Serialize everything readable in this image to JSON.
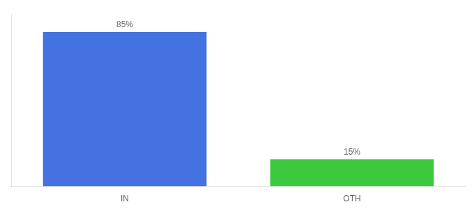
{
  "chart_data": {
    "type": "bar",
    "categories": [
      "IN",
      "OTH"
    ],
    "values": [
      85,
      15
    ],
    "value_labels": [
      "85%",
      "15%"
    ],
    "data_labels": true,
    "colors": [
      "#4472e0",
      "#3dc93d"
    ],
    "ylim": [
      0,
      95
    ],
    "grid": false,
    "tick_labels": "x"
  }
}
